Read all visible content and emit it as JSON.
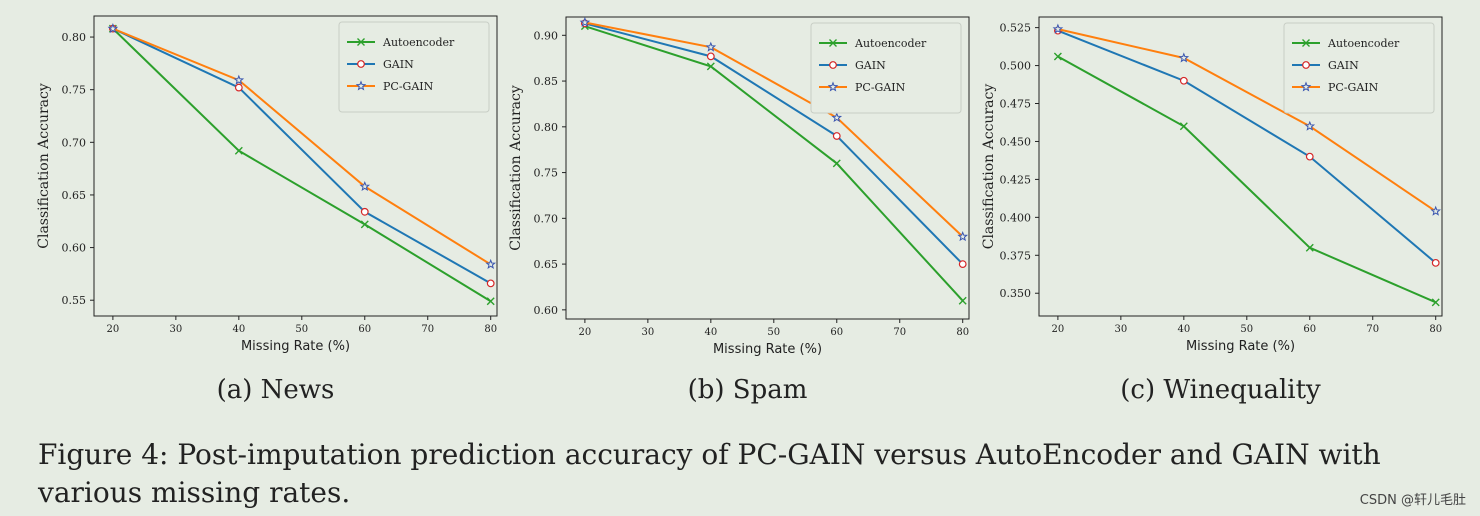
{
  "figure": {
    "caption": "Figure 4: Post-imputation prediction accuracy of PC-GAIN versus AutoEncoder and GAIN with various missing rates.",
    "watermark": "CSDN @轩儿毛肚"
  },
  "colors": {
    "Autoencoder": "#2ca02c",
    "GAIN": "#1f77b4",
    "PC-GAIN": "#ff7f0e",
    "marker_edge": "#d62728",
    "star_marker": "#3a56b0"
  },
  "chart_data": [
    {
      "type": "line",
      "subcaption": "(a) News",
      "xlabel": "Missing Rate (%)",
      "ylabel": "Classification Accuracy",
      "x": [
        20,
        40,
        60,
        80
      ],
      "xticks": [
        20,
        30,
        40,
        50,
        60,
        70,
        80
      ],
      "xlim": [
        17,
        81
      ],
      "ylim": [
        0.535,
        0.82
      ],
      "yticks": [
        0.55,
        0.6,
        0.65,
        0.7,
        0.75,
        0.8
      ],
      "ytick_labels": [
        "0.55",
        "0.60",
        "0.65",
        "0.70",
        "0.75",
        "0.80"
      ],
      "legend_position": "top-right",
      "series": [
        {
          "name": "Autoencoder",
          "marker": "x",
          "values": [
            0.808,
            0.692,
            0.622,
            0.549
          ]
        },
        {
          "name": "GAIN",
          "marker": "o",
          "values": [
            0.808,
            0.752,
            0.634,
            0.566
          ]
        },
        {
          "name": "PC-GAIN",
          "marker": "star",
          "values": [
            0.808,
            0.759,
            0.658,
            0.584
          ]
        }
      ]
    },
    {
      "type": "line",
      "subcaption": "(b) Spam",
      "xlabel": "Missing Rate (%)",
      "ylabel": "Classification Accuracy",
      "x": [
        20,
        40,
        60,
        80
      ],
      "xticks": [
        20,
        30,
        40,
        50,
        60,
        70,
        80
      ],
      "xlim": [
        17,
        81
      ],
      "ylim": [
        0.59,
        0.92
      ],
      "yticks": [
        0.6,
        0.65,
        0.7,
        0.75,
        0.8,
        0.85,
        0.9
      ],
      "ytick_labels": [
        "0.60",
        "0.65",
        "0.70",
        "0.75",
        "0.80",
        "0.85",
        "0.90"
      ],
      "legend_position": "top-right",
      "series": [
        {
          "name": "Autoencoder",
          "marker": "x",
          "values": [
            0.91,
            0.866,
            0.76,
            0.61
          ]
        },
        {
          "name": "GAIN",
          "marker": "o",
          "values": [
            0.913,
            0.877,
            0.79,
            0.65
          ]
        },
        {
          "name": "PC-GAIN",
          "marker": "star",
          "values": [
            0.914,
            0.887,
            0.81,
            0.68
          ]
        }
      ]
    },
    {
      "type": "line",
      "subcaption": "(c) Winequality",
      "xlabel": "Missing Rate (%)",
      "ylabel": "Classification Accuracy",
      "x": [
        20,
        40,
        60,
        80
      ],
      "xticks": [
        20,
        30,
        40,
        50,
        60,
        70,
        80
      ],
      "xlim": [
        17,
        81
      ],
      "ylim": [
        0.335,
        0.532
      ],
      "yticks": [
        0.35,
        0.375,
        0.4,
        0.425,
        0.45,
        0.475,
        0.5,
        0.525
      ],
      "ytick_labels": [
        "0.350",
        "0.375",
        "0.400",
        "0.425",
        "0.450",
        "0.475",
        "0.500",
        "0.525"
      ],
      "legend_position": "top-right",
      "series": [
        {
          "name": "Autoencoder",
          "marker": "x",
          "values": [
            0.506,
            0.46,
            0.38,
            0.344
          ]
        },
        {
          "name": "GAIN",
          "marker": "o",
          "values": [
            0.523,
            0.49,
            0.44,
            0.37
          ]
        },
        {
          "name": "PC-GAIN",
          "marker": "star",
          "values": [
            0.524,
            0.505,
            0.46,
            0.404
          ]
        }
      ]
    }
  ]
}
